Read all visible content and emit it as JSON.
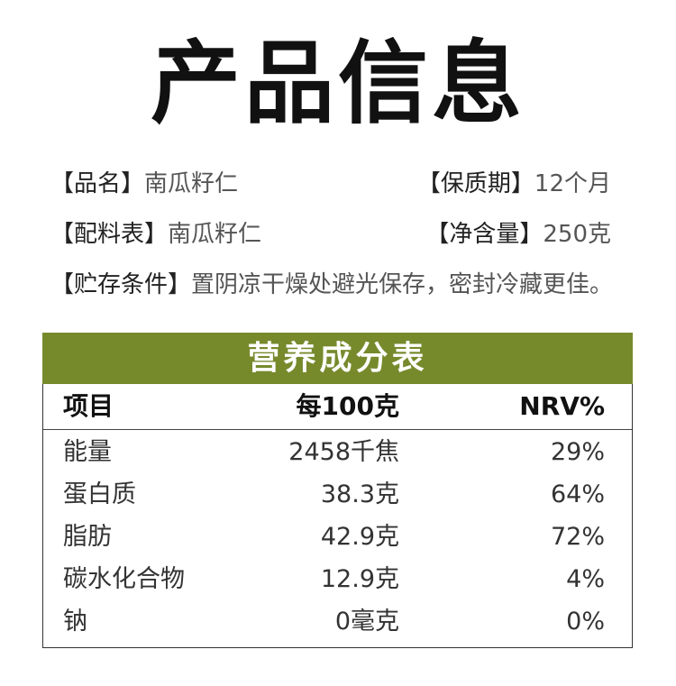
{
  "title": "产品信息",
  "info": {
    "name_label": "【品名】",
    "name_value": "南瓜籽仁",
    "shelf_label": "【保质期】",
    "shelf_value": "12个月",
    "ingredients_label": "【配料表】",
    "ingredients_value": "南瓜籽仁",
    "net_label": "【净含量】",
    "net_value": "250克",
    "storage_label": "【贮存条件】",
    "storage_value": "置阴凉干燥处避光保存，密封冷藏更佳。"
  },
  "nutrition": {
    "title": "营养成分表",
    "headers": [
      "项目",
      "每100克",
      "NRV%"
    ],
    "rows": [
      {
        "item": "能量",
        "per100": "2458千焦",
        "nrv": "29%"
      },
      {
        "item": "蛋白质",
        "per100": "38.3克",
        "nrv": "64%"
      },
      {
        "item": "脂肪",
        "per100": "42.9克",
        "nrv": "72%"
      },
      {
        "item": "碳水化合物",
        "per100": "12.9克",
        "nrv": "4%"
      },
      {
        "item": "钠",
        "per100": "0毫克",
        "nrv": "0%"
      }
    ]
  },
  "colors": {
    "header_bg": "#768a2c"
  }
}
